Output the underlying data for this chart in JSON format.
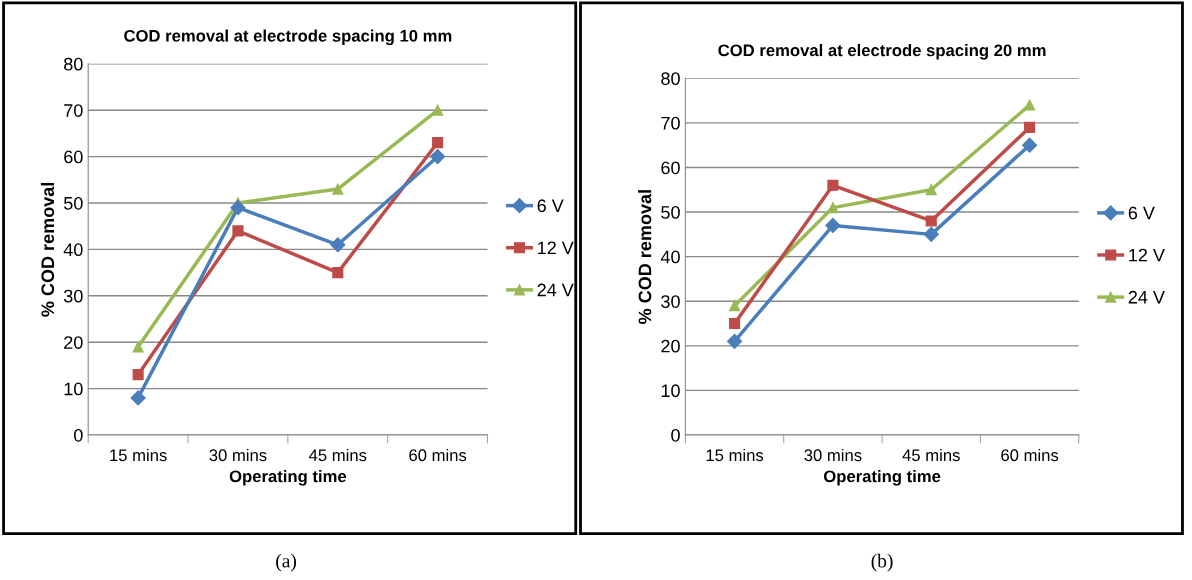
{
  "chart_data": [
    {
      "type": "line",
      "title": "COD removal at electrode spacing 10 mm",
      "xlabel": "Operating time",
      "ylabel": "% COD removal",
      "categories": [
        "15 mins",
        "30 mins",
        "45 mins",
        "60 mins"
      ],
      "series": [
        {
          "name": "6 V",
          "color": "#4a7ebb",
          "marker": "diamond",
          "values": [
            8,
            49,
            41,
            60
          ]
        },
        {
          "name": "12 V",
          "color": "#be4b48",
          "marker": "square",
          "values": [
            13,
            44,
            35,
            63
          ]
        },
        {
          "name": "24 V",
          "color": "#98b954",
          "marker": "triangle",
          "values": [
            19,
            50,
            53,
            70
          ]
        }
      ],
      "ylim": [
        0,
        80
      ],
      "yticks": [
        0,
        10,
        20,
        30,
        40,
        50,
        60,
        70,
        80
      ],
      "grid": "y",
      "legend": "right",
      "annotations": [
        "(a)"
      ]
    },
    {
      "type": "line",
      "title": "COD removal at electrode spacing 20 mm",
      "xlabel": "Operating time",
      "ylabel": "% COD removal",
      "categories": [
        "15 mins",
        "30 mins",
        "45 mins",
        "60 mins"
      ],
      "series": [
        {
          "name": "6 V",
          "color": "#4a7ebb",
          "marker": "diamond",
          "values": [
            21,
            47,
            45,
            65
          ]
        },
        {
          "name": "12 V",
          "color": "#be4b48",
          "marker": "square",
          "values": [
            25,
            56,
            48,
            69
          ]
        },
        {
          "name": "24 V",
          "color": "#98b954",
          "marker": "triangle",
          "values": [
            29,
            51,
            55,
            74
          ]
        }
      ],
      "ylim": [
        0,
        80
      ],
      "yticks": [
        0,
        10,
        20,
        30,
        40,
        50,
        60,
        70,
        80
      ],
      "grid": "y",
      "legend": "right",
      "annotations": [
        "(b)"
      ]
    }
  ]
}
